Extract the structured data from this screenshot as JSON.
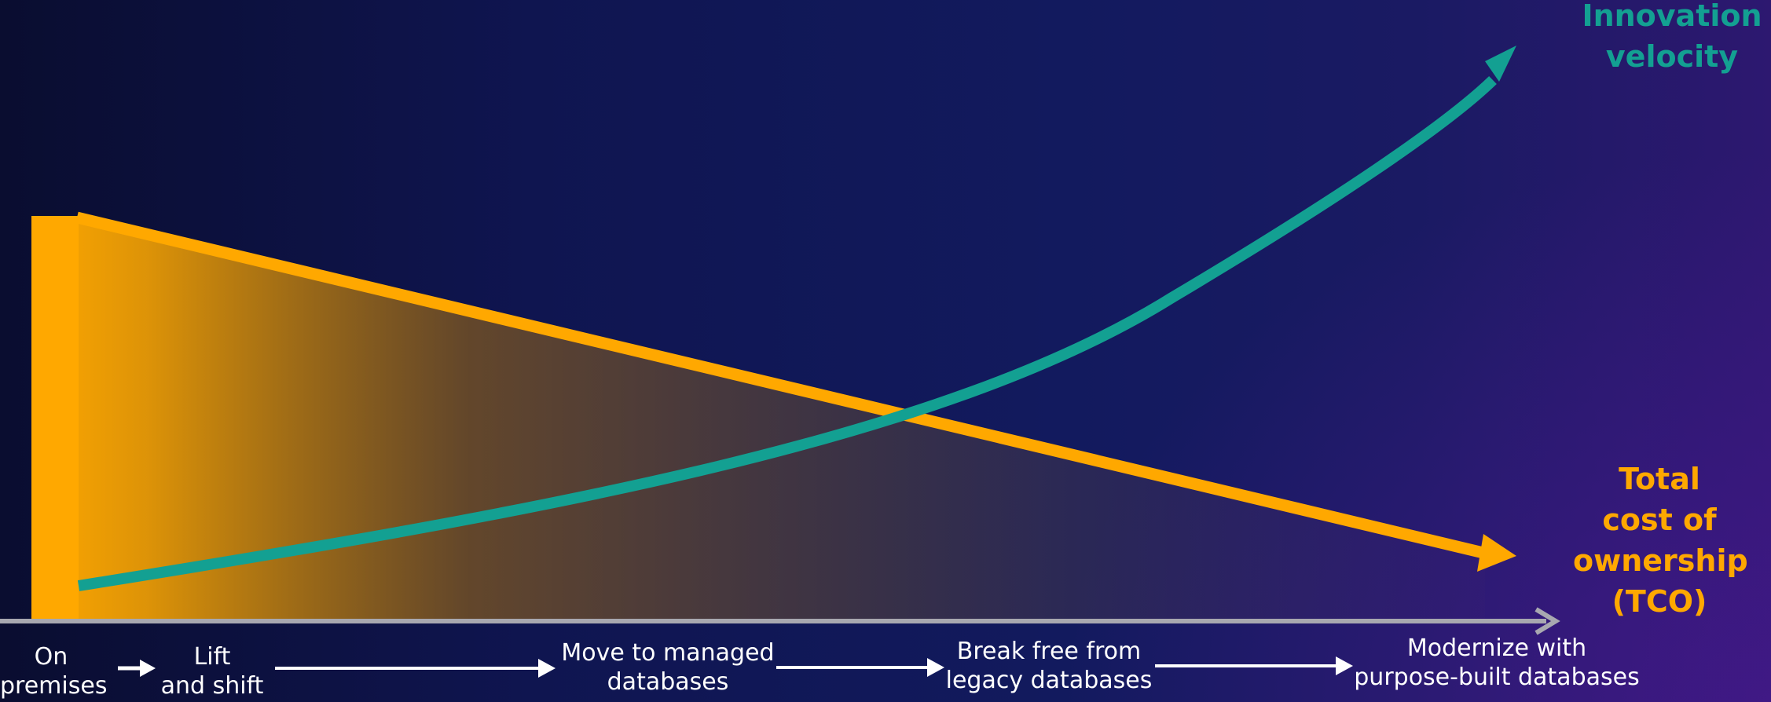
{
  "curves": {
    "velocity_label": "Innovation\nvelocity",
    "tco_label": "Total\ncost of\nownership\n(TCO)"
  },
  "stages": [
    "On\npremises",
    "Lift\nand shift",
    "Move to managed\ndatabases",
    "Break free from\nlegacy databases",
    "Modernize with\npurpose-built databases"
  ],
  "colors": {
    "velocity": "#13a092",
    "tco": "#ffa800",
    "axis": "#a8a8b0",
    "arrow": "#ffffff"
  }
}
